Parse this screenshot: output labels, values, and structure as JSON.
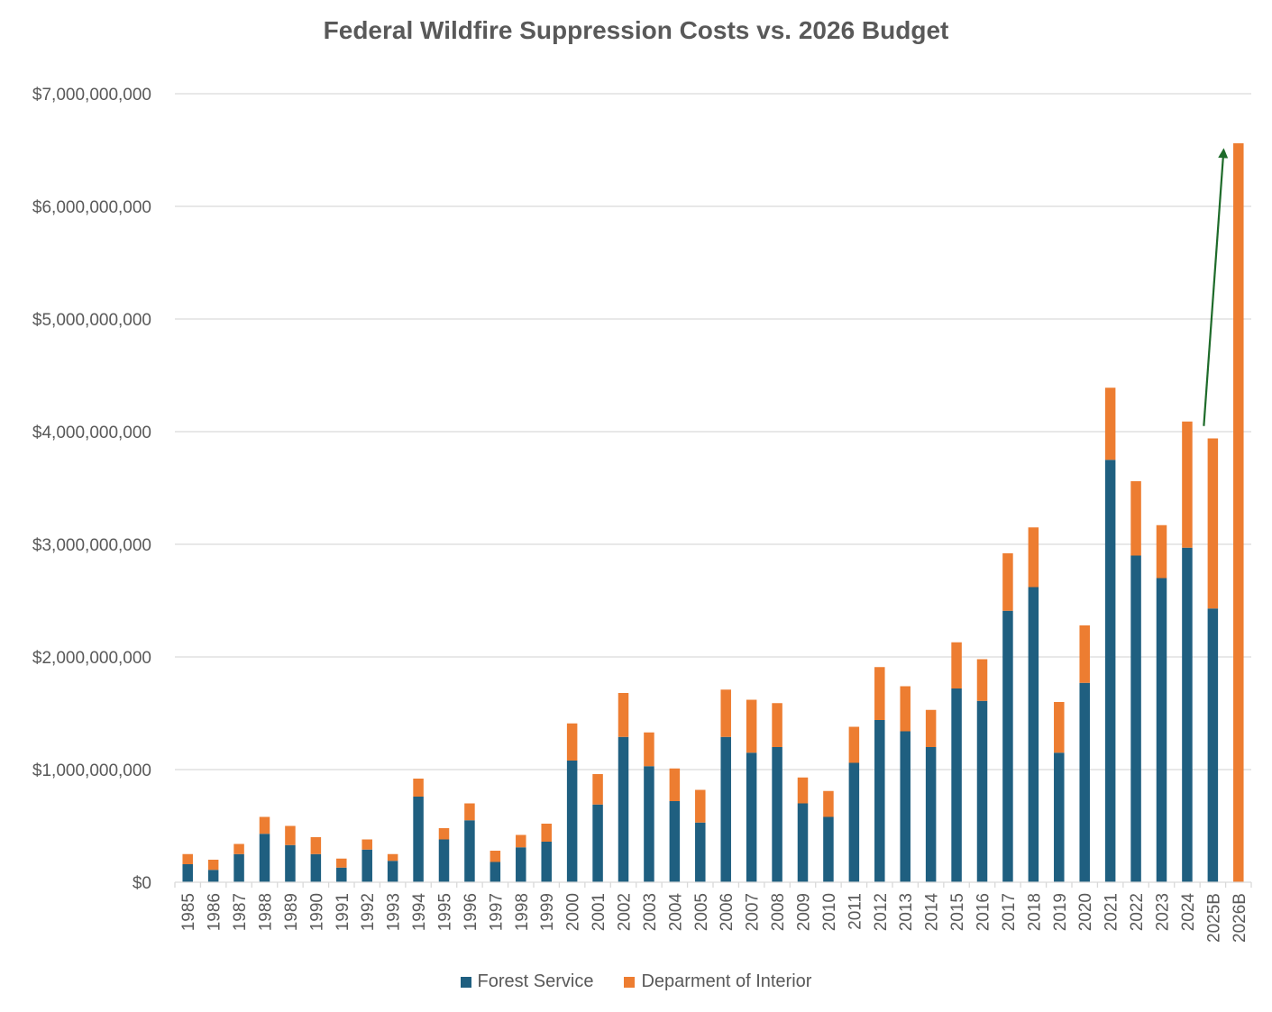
{
  "chart_data": {
    "type": "bar",
    "stacked": true,
    "title": "Federal Wildfire Suppression Costs vs. 2026 Budget",
    "xlabel": "",
    "ylabel": "",
    "ylim": [
      0,
      7000000000
    ],
    "yticks": [
      0,
      1000000000,
      2000000000,
      3000000000,
      4000000000,
      5000000000,
      6000000000,
      7000000000
    ],
    "ytick_labels": [
      "$0",
      "$1,000,000,000",
      "$2,000,000,000",
      "$3,000,000,000",
      "$4,000,000,000",
      "$5,000,000,000",
      "$6,000,000,000",
      "$7,000,000,000"
    ],
    "grid": true,
    "legend_position": "bottom",
    "categories": [
      "1985",
      "1986",
      "1987",
      "1988",
      "1989",
      "1990",
      "1991",
      "1992",
      "1993",
      "1994",
      "1995",
      "1996",
      "1997",
      "1998",
      "1999",
      "2000",
      "2001",
      "2002",
      "2003",
      "2004",
      "2005",
      "2006",
      "2007",
      "2008",
      "2009",
      "2010",
      "2011",
      "2012",
      "2013",
      "2014",
      "2015",
      "2016",
      "2017",
      "2018",
      "2019",
      "2020",
      "2021",
      "2022",
      "2023",
      "2024",
      "2025B",
      "2026B"
    ],
    "series": [
      {
        "name": "Forest Service",
        "color": "#1f5f80",
        "values": [
          160000000,
          110000000,
          250000000,
          430000000,
          330000000,
          250000000,
          130000000,
          290000000,
          190000000,
          760000000,
          380000000,
          550000000,
          180000000,
          310000000,
          360000000,
          1080000000,
          690000000,
          1290000000,
          1030000000,
          720000000,
          530000000,
          1290000000,
          1150000000,
          1200000000,
          700000000,
          580000000,
          1060000000,
          1440000000,
          1340000000,
          1200000000,
          1720000000,
          1610000000,
          2410000000,
          2620000000,
          1150000000,
          1770000000,
          3750000000,
          2900000000,
          2700000000,
          2970000000,
          2430000000,
          0
        ]
      },
      {
        "name": "Deparment of Interior",
        "color": "#ed7d31",
        "values": [
          90000000,
          90000000,
          90000000,
          150000000,
          170000000,
          150000000,
          80000000,
          90000000,
          60000000,
          160000000,
          100000000,
          150000000,
          100000000,
          110000000,
          160000000,
          330000000,
          270000000,
          390000000,
          300000000,
          290000000,
          290000000,
          420000000,
          470000000,
          390000000,
          230000000,
          230000000,
          320000000,
          470000000,
          400000000,
          330000000,
          410000000,
          370000000,
          510000000,
          530000000,
          450000000,
          510000000,
          640000000,
          660000000,
          470000000,
          1120000000,
          1510000000,
          6560000000
        ]
      }
    ],
    "annotations": [
      {
        "type": "arrow",
        "color": "#1e6b2a",
        "from": [
          "2025B",
          4050000000
        ],
        "to": [
          "2025B",
          6500000000
        ]
      }
    ]
  }
}
